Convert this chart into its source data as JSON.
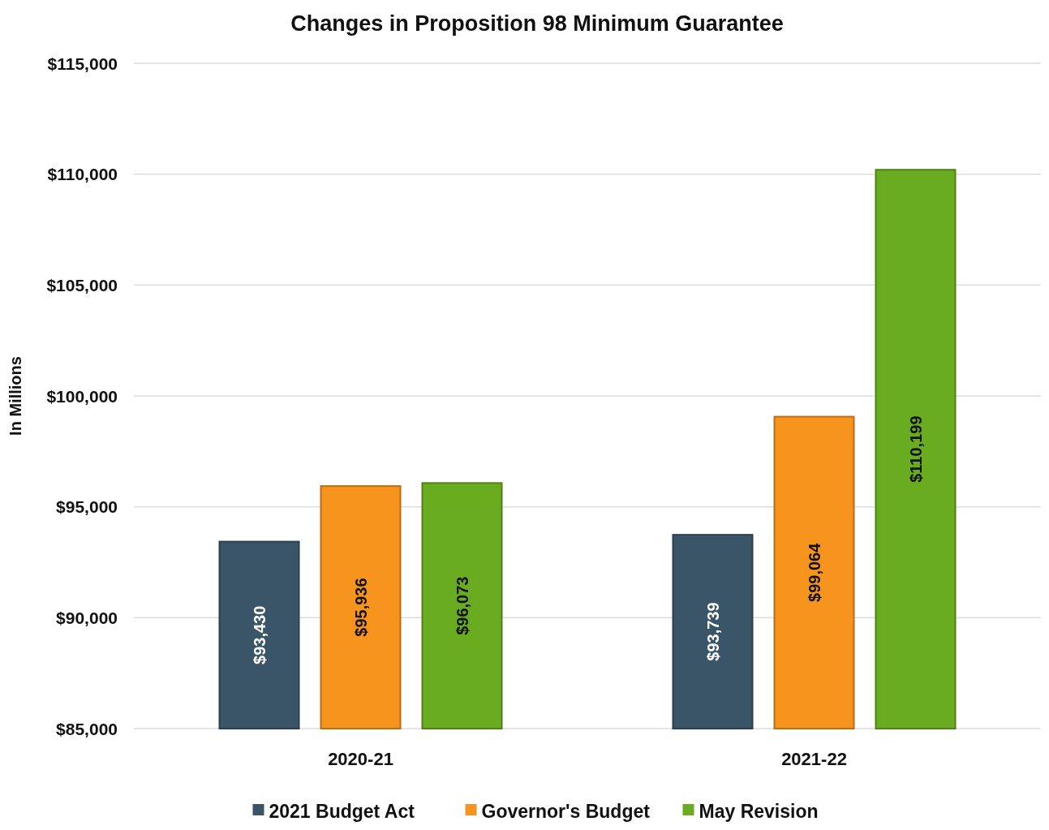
{
  "chart_data": {
    "type": "bar",
    "title": "Changes in Proposition 98 Minimum Guarantee",
    "ylabel": "In Millions",
    "categories": [
      "2020-21",
      "2021-22"
    ],
    "series": [
      {
        "name": "2021 Budget Act",
        "color": "#3b5568",
        "values": [
          93430,
          93739
        ]
      },
      {
        "name": "Governor's Budget",
        "color": "#f7941d",
        "values": [
          95936,
          99064
        ]
      },
      {
        "name": "May Revision",
        "color": "#6aac1f",
        "values": [
          96073,
          110199
        ]
      }
    ],
    "ylim": [
      85000,
      115000
    ],
    "yticks": [
      {
        "value": 85000,
        "label": "$85,000"
      },
      {
        "value": 90000,
        "label": "$90,000"
      },
      {
        "value": 95000,
        "label": "$95,000"
      },
      {
        "value": 100000,
        "label": "$100,000"
      },
      {
        "value": 105000,
        "label": "$105,000"
      },
      {
        "value": 110000,
        "label": "$110,000"
      },
      {
        "value": 115000,
        "label": "$115,000"
      }
    ],
    "value_labels": [
      [
        "$93,430",
        "$93,739"
      ],
      [
        "$95,936",
        "$99,064"
      ],
      [
        "$96,073",
        "$110,199"
      ]
    ],
    "grid": "y",
    "legend": "bottom"
  }
}
